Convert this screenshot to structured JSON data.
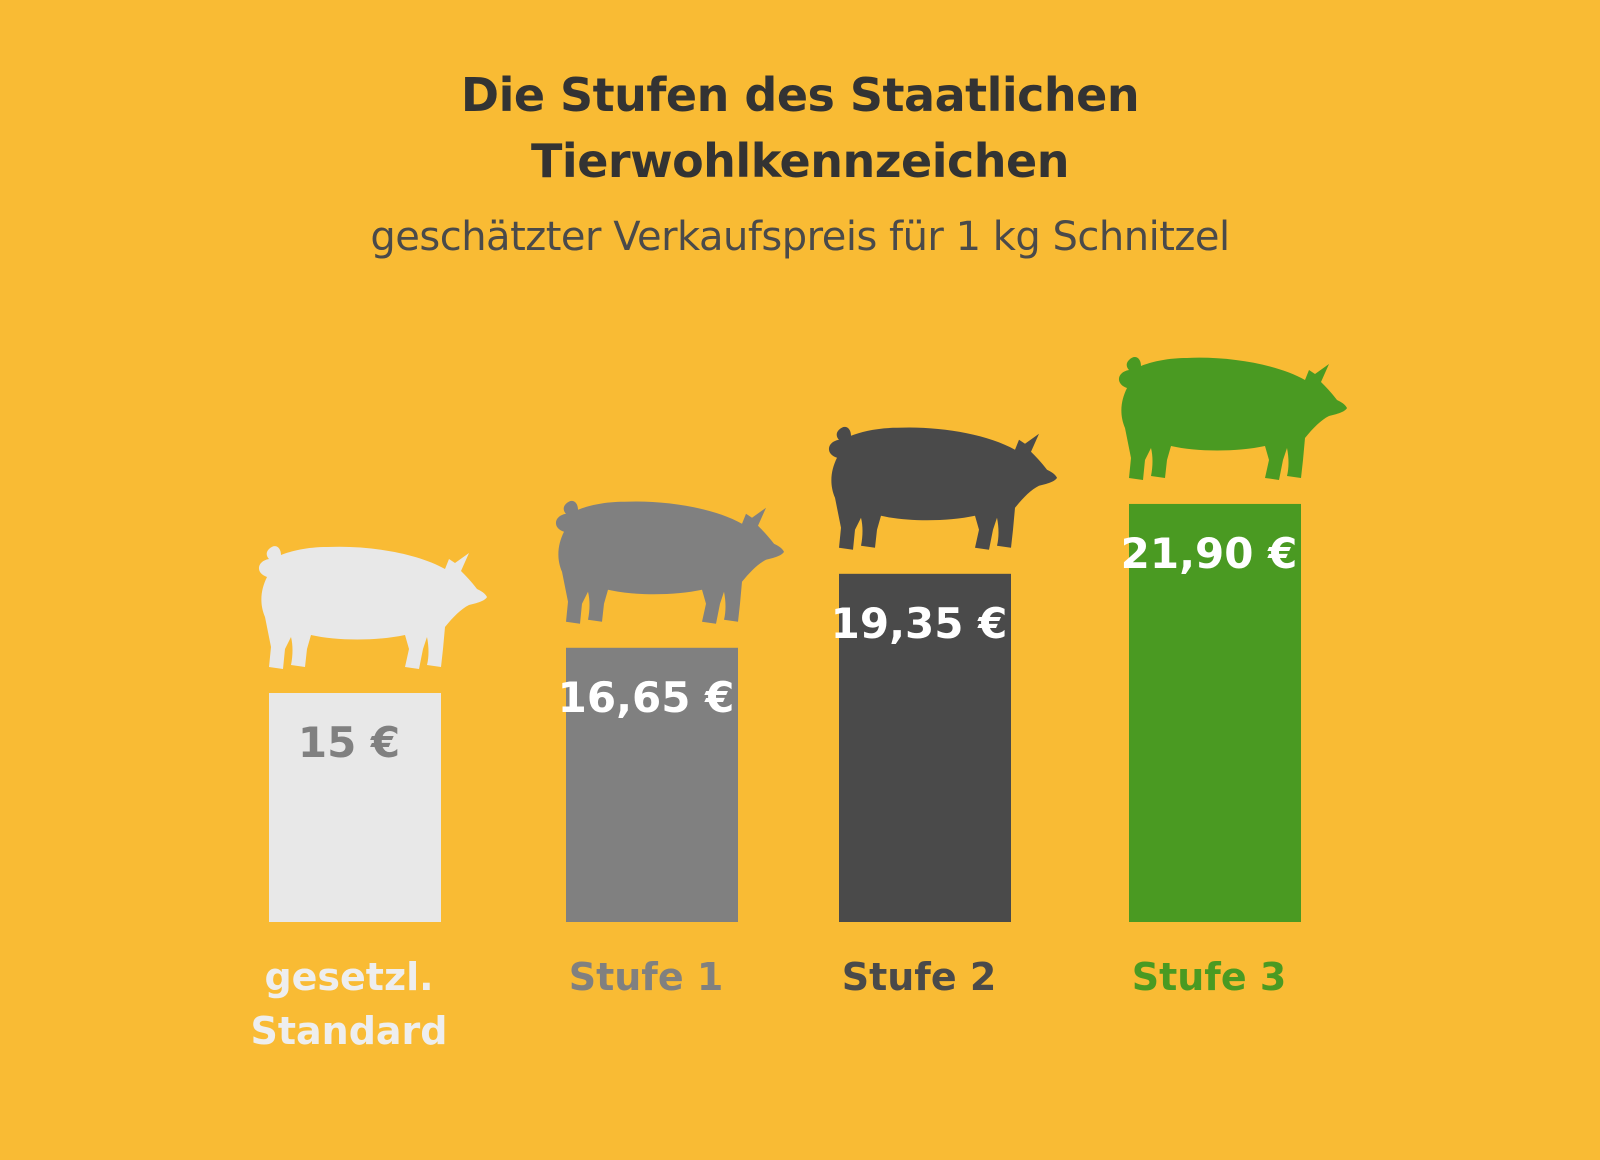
{
  "title_line1": "Die Stufen des Staatlichen",
  "title_line2": "Tierwohlkennzeichen",
  "subtitle": "geschätzter Verkaufspreis für 1 kg Schnitzel",
  "colors": {
    "background": "#f9bb34",
    "standard": "#e8e8e8",
    "stufe1": "#808080",
    "stufe2": "#4a4a4a",
    "stufe3": "#4a9a22"
  },
  "icons": [
    "pig-icon",
    "pig-icon",
    "pig-icon",
    "pig-icon"
  ],
  "chart_data": {
    "type": "bar",
    "categories": [
      [
        "gesetzl.",
        "Standard"
      ],
      [
        "Stufe 1"
      ],
      [
        "Stufe 2"
      ],
      [
        "Stufe 3"
      ]
    ],
    "values": [
      15,
      16.65,
      19.35,
      21.9
    ],
    "value_labels": [
      "15 €",
      "16,65 €",
      "19,35 €",
      "21,90 €"
    ],
    "bar_colors": [
      "#e8e8e8",
      "#808080",
      "#4a4a4a",
      "#4a9a22"
    ],
    "value_label_colors": [
      "#808080",
      "#ffffff",
      "#ffffff",
      "#ffffff"
    ],
    "category_label_colors": [
      "#eeeeee",
      "#808080",
      "#4a4a4a",
      "#4a9a22"
    ],
    "title": "",
    "xlabel": "",
    "ylabel": ""
  }
}
